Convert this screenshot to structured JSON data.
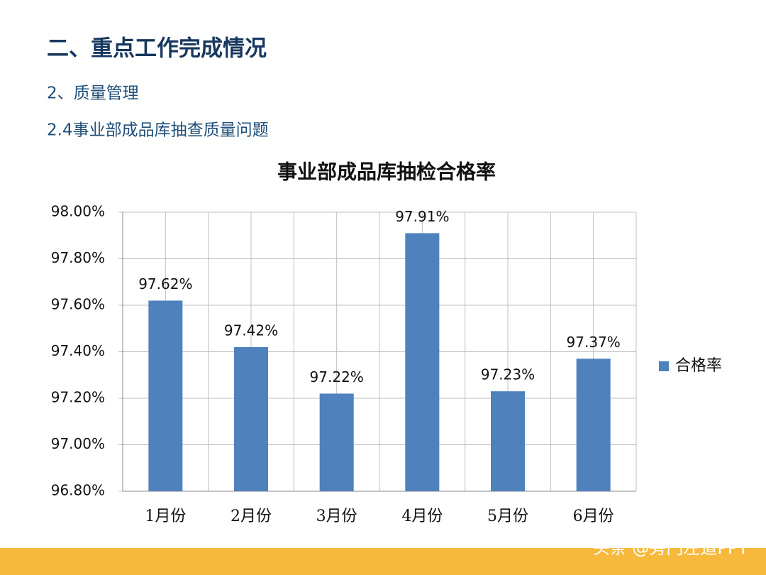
{
  "header": {
    "title": "二、重点工作完成情况",
    "section": "2、质量管理",
    "subsection": "2.4事业部成品库抽查质量问题"
  },
  "watermark": "头条 @旁门左道PPT",
  "chart_data": {
    "type": "bar",
    "title": "事业部成品库抽检合格率",
    "categories": [
      "1月份",
      "2月份",
      "3月份",
      "4月份",
      "5月份",
      "6月份"
    ],
    "series": [
      {
        "name": "合格率",
        "color": "#4f81bd",
        "values": [
          97.62,
          97.42,
          97.22,
          97.91,
          97.23,
          97.37
        ],
        "value_labels": [
          "97.62%",
          "97.42%",
          "97.22%",
          "97.91%",
          "97.23%",
          "97.37%"
        ]
      }
    ],
    "ylim": [
      96.8,
      98.0
    ],
    "yticks": [
      {
        "value": 96.8,
        "label": "96.80%"
      },
      {
        "value": 97.0,
        "label": "97.00%"
      },
      {
        "value": 97.2,
        "label": "97.20%"
      },
      {
        "value": 97.4,
        "label": "97.40%"
      },
      {
        "value": 97.6,
        "label": "97.60%"
      },
      {
        "value": 97.8,
        "label": "97.80%"
      },
      {
        "value": 98.0,
        "label": "98.00%"
      }
    ],
    "grid": true,
    "legend": "right"
  }
}
